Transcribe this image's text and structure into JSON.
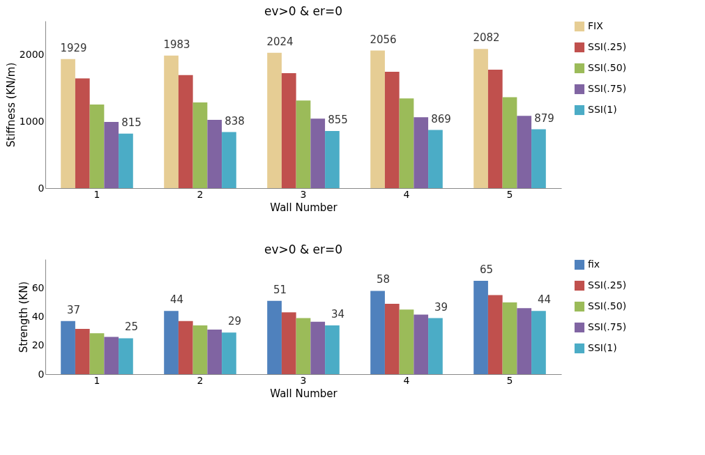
{
  "chart_data": [
    {
      "type": "bar",
      "title": "ev>0   &   er=0",
      "xlabel": "Wall Number",
      "ylabel": "Stiffness (KN/m)",
      "categories": [
        "1",
        "2",
        "3",
        "4",
        "5"
      ],
      "ylim": [
        0,
        2500
      ],
      "yticks": [
        0,
        1000,
        2000
      ],
      "grid": false,
      "legend": "right",
      "series": [
        {
          "name": "FIX",
          "color": "#e6cd94",
          "values": [
            1929,
            1983,
            2024,
            2056,
            2082
          ],
          "value_labels": [
            "1929",
            "1983",
            "2024",
            "2056",
            "2082"
          ]
        },
        {
          "name": "SSI(.25)",
          "color": "#c0504d",
          "values": [
            1640,
            1690,
            1720,
            1740,
            1770
          ]
        },
        {
          "name": "SSI(.50)",
          "color": "#9bbb59",
          "values": [
            1250,
            1280,
            1310,
            1340,
            1360
          ]
        },
        {
          "name": "SSI(.75)",
          "color": "#8064a2",
          "values": [
            990,
            1020,
            1040,
            1060,
            1080
          ]
        },
        {
          "name": "SSI(1)",
          "color": "#4bacc6",
          "values": [
            815,
            838,
            855,
            869,
            879
          ],
          "value_labels": [
            "815",
            "838",
            "855",
            "869",
            "879"
          ]
        }
      ]
    },
    {
      "type": "bar",
      "title": "ev>0   &   er=0",
      "xlabel": "Wall Number",
      "ylabel": "Strength (KN)",
      "categories": [
        "1",
        "2",
        "3",
        "4",
        "5"
      ],
      "ylim": [
        0,
        80
      ],
      "yticks": [
        0,
        20,
        40,
        60
      ],
      "grid": false,
      "legend": "right",
      "series": [
        {
          "name": "fix",
          "color": "#4f81bd",
          "values": [
            37,
            44,
            51,
            58,
            65
          ],
          "value_labels": [
            "37",
            "44",
            "51",
            "58",
            "65"
          ]
        },
        {
          "name": "SSI(.25)",
          "color": "#c0504d",
          "values": [
            31.5,
            37,
            43,
            49,
            55
          ]
        },
        {
          "name": "SSI(.50)",
          "color": "#9bbb59",
          "values": [
            28.5,
            34,
            39,
            45,
            50
          ]
        },
        {
          "name": "SSI(.75)",
          "color": "#8064a2",
          "values": [
            26,
            31,
            36.5,
            41.5,
            46
          ]
        },
        {
          "name": "SSI(1)",
          "color": "#4bacc6",
          "values": [
            25,
            29,
            34,
            39,
            44
          ],
          "value_labels": [
            "25",
            "29",
            "34",
            "39",
            "44"
          ]
        }
      ]
    }
  ]
}
